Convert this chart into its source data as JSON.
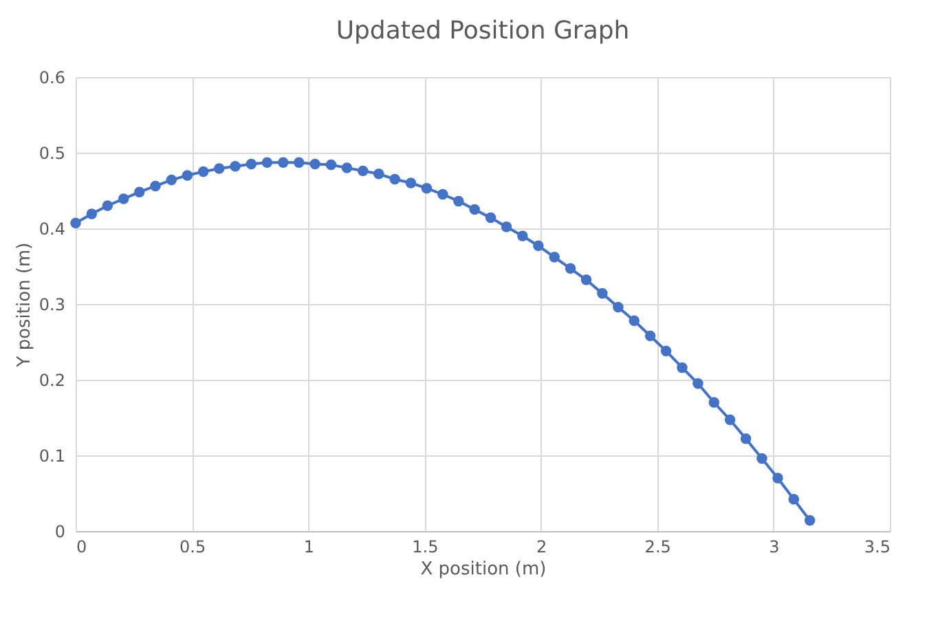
{
  "chart_data": {
    "type": "line",
    "title": "Updated Position Graph",
    "xlabel": "X position (m)",
    "ylabel": "Y position (m)",
    "x": [
      0,
      0.069,
      0.137,
      0.206,
      0.274,
      0.343,
      0.412,
      0.48,
      0.549,
      0.617,
      0.686,
      0.755,
      0.823,
      0.892,
      0.96,
      1.029,
      1.098,
      1.166,
      1.235,
      1.303,
      1.372,
      1.441,
      1.509,
      1.578,
      1.646,
      1.715,
      1.784,
      1.852,
      1.921,
      1.989,
      2.058,
      2.127,
      2.195,
      2.264,
      2.332,
      2.401,
      2.47,
      2.538,
      2.607,
      2.675,
      2.744,
      2.813,
      2.881,
      2.95,
      3.018,
      3.087,
      3.156
    ],
    "series": [
      {
        "color": "#4472c4",
        "values": [
          0.407,
          0.419,
          0.43,
          0.439,
          0.448,
          0.456,
          0.464,
          0.47,
          0.475,
          0.479,
          0.482,
          0.485,
          0.487,
          0.487,
          0.487,
          0.485,
          0.484,
          0.48,
          0.476,
          0.472,
          0.465,
          0.46,
          0.453,
          0.445,
          0.436,
          0.425,
          0.414,
          0.402,
          0.39,
          0.377,
          0.362,
          0.347,
          0.332,
          0.314,
          0.296,
          0.278,
          0.258,
          0.238,
          0.216,
          0.195,
          0.17,
          0.147,
          0.122,
          0.096,
          0.07,
          0.042,
          0.014
        ]
      }
    ],
    "xlim": [
      0,
      3.5
    ],
    "xticks": [
      0,
      0.5,
      1,
      1.5,
      2,
      2.5,
      3,
      3.5
    ],
    "ylim": [
      0,
      0.6
    ],
    "yticks": [
      0,
      0.1,
      0.2,
      0.3,
      0.4,
      0.5,
      0.6
    ],
    "grid": true,
    "marker": "circle",
    "line_style": "solid"
  }
}
